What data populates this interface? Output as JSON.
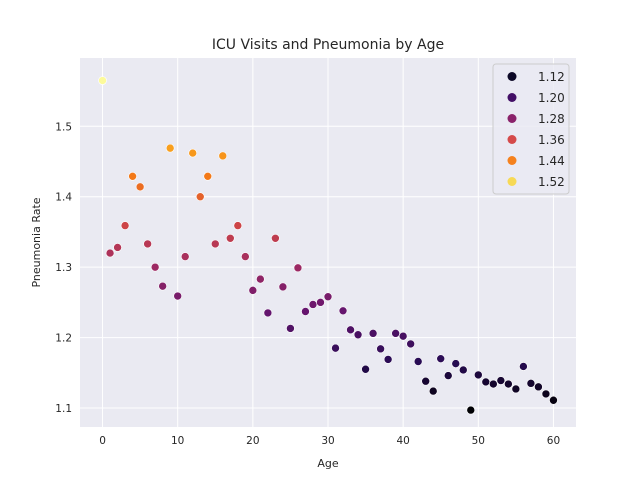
{
  "chart_data": {
    "type": "scatter",
    "title": "ICU Visits and Pneumonia by Age",
    "xlabel": "Age",
    "ylabel": "Pneumonia Rate",
    "xlim": [
      -3,
      63
    ],
    "ylim": [
      1.073,
      1.597
    ],
    "xticks": [
      0,
      10,
      20,
      30,
      40,
      50,
      60
    ],
    "yticks": [
      1.1,
      1.2,
      1.3,
      1.4,
      1.5
    ],
    "ytick_labels": [
      "1.1",
      "1.2",
      "1.3",
      "1.4",
      "1.5"
    ],
    "grid": true,
    "legend": {
      "location": "top-right",
      "entries": [
        {
          "label": "1.12",
          "color": "#0c0826"
        },
        {
          "label": "1.20",
          "color": "#430f66"
        },
        {
          "label": "1.28",
          "color": "#8a226a"
        },
        {
          "label": "1.36",
          "color": "#d54a4a"
        },
        {
          "label": "1.44",
          "color": "#f5811d"
        },
        {
          "label": "1.52",
          "color": "#f7d955"
        }
      ]
    },
    "color_scale": {
      "min": 1.1,
      "max": 1.57,
      "stops": [
        [
          0.0,
          "#000004"
        ],
        [
          0.14,
          "#280b54"
        ],
        [
          0.29,
          "#65156e"
        ],
        [
          0.43,
          "#9f2a63"
        ],
        [
          0.57,
          "#d44842"
        ],
        [
          0.71,
          "#f57d15"
        ],
        [
          0.86,
          "#fac127"
        ],
        [
          1.0,
          "#fcffa4"
        ]
      ]
    },
    "points": [
      {
        "x": 0,
        "y": 1.565
      },
      {
        "x": 1,
        "y": 1.32
      },
      {
        "x": 2,
        "y": 1.328
      },
      {
        "x": 3,
        "y": 1.359
      },
      {
        "x": 4,
        "y": 1.429
      },
      {
        "x": 5,
        "y": 1.414
      },
      {
        "x": 6,
        "y": 1.333
      },
      {
        "x": 7,
        "y": 1.3
      },
      {
        "x": 8,
        "y": 1.273
      },
      {
        "x": 9,
        "y": 1.469
      },
      {
        "x": 10,
        "y": 1.259
      },
      {
        "x": 11,
        "y": 1.315
      },
      {
        "x": 12,
        "y": 1.462
      },
      {
        "x": 13,
        "y": 1.4
      },
      {
        "x": 14,
        "y": 1.429
      },
      {
        "x": 15,
        "y": 1.333
      },
      {
        "x": 16,
        "y": 1.458
      },
      {
        "x": 17,
        "y": 1.341
      },
      {
        "x": 18,
        "y": 1.359
      },
      {
        "x": 19,
        "y": 1.315
      },
      {
        "x": 20,
        "y": 1.267
      },
      {
        "x": 21,
        "y": 1.283
      },
      {
        "x": 22,
        "y": 1.235
      },
      {
        "x": 23,
        "y": 1.341
      },
      {
        "x": 24,
        "y": 1.272
      },
      {
        "x": 25,
        "y": 1.213
      },
      {
        "x": 26,
        "y": 1.299
      },
      {
        "x": 27,
        "y": 1.237
      },
      {
        "x": 28,
        "y": 1.247
      },
      {
        "x": 29,
        "y": 1.25
      },
      {
        "x": 30,
        "y": 1.258
      },
      {
        "x": 31,
        "y": 1.185
      },
      {
        "x": 32,
        "y": 1.238
      },
      {
        "x": 33,
        "y": 1.211
      },
      {
        "x": 34,
        "y": 1.204
      },
      {
        "x": 35,
        "y": 1.155
      },
      {
        "x": 36,
        "y": 1.206
      },
      {
        "x": 37,
        "y": 1.184
      },
      {
        "x": 38,
        "y": 1.169
      },
      {
        "x": 39,
        "y": 1.206
      },
      {
        "x": 40,
        "y": 1.202
      },
      {
        "x": 41,
        "y": 1.191
      },
      {
        "x": 42,
        "y": 1.166
      },
      {
        "x": 43,
        "y": 1.138
      },
      {
        "x": 44,
        "y": 1.124
      },
      {
        "x": 45,
        "y": 1.17
      },
      {
        "x": 46,
        "y": 1.146
      },
      {
        "x": 47,
        "y": 1.163
      },
      {
        "x": 48,
        "y": 1.154
      },
      {
        "x": 49,
        "y": 1.097
      },
      {
        "x": 50,
        "y": 1.147
      },
      {
        "x": 51,
        "y": 1.137
      },
      {
        "x": 52,
        "y": 1.134
      },
      {
        "x": 53,
        "y": 1.139
      },
      {
        "x": 54,
        "y": 1.134
      },
      {
        "x": 55,
        "y": 1.127
      },
      {
        "x": 56,
        "y": 1.159
      },
      {
        "x": 57,
        "y": 1.135
      },
      {
        "x": 58,
        "y": 1.13
      },
      {
        "x": 59,
        "y": 1.12
      },
      {
        "x": 60,
        "y": 1.111
      }
    ]
  }
}
